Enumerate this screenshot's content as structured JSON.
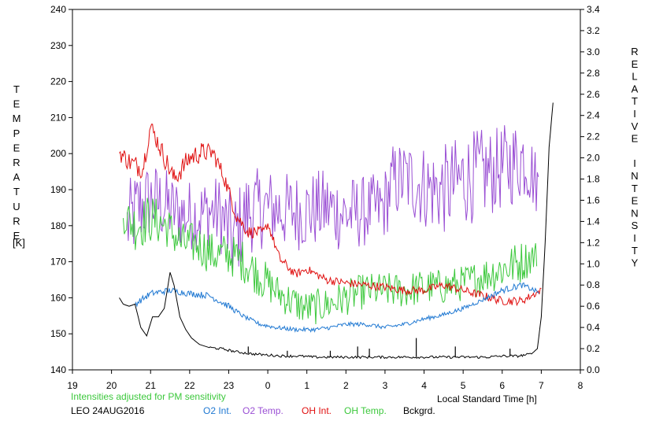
{
  "chart_data": {
    "type": "line",
    "left_axis": {
      "label_letters": [
        "T",
        "E",
        "M",
        "P",
        "E",
        "R",
        "A",
        "T",
        "U",
        "R",
        "E"
      ],
      "unit": "[K]",
      "ylim": [
        140,
        240
      ],
      "ticks": [
        140,
        150,
        160,
        170,
        180,
        190,
        200,
        210,
        220,
        230,
        240
      ],
      "tick_labels": [
        "140",
        "150",
        "160",
        "170",
        "180",
        "190",
        "200",
        "210",
        "220",
        "230",
        "240"
      ]
    },
    "right_axis": {
      "label_letters": [
        "R",
        "E",
        "L",
        "A",
        "T",
        "I",
        "V",
        "E",
        "",
        "I",
        "N",
        "T",
        "E",
        "N",
        "S",
        "I",
        "T",
        "Y"
      ],
      "ylim": [
        0,
        3.4
      ],
      "ticks": [
        0,
        0.2,
        0.4,
        0.6,
        0.8,
        1.0,
        1.2,
        1.4,
        1.6,
        1.8,
        2.0,
        2.2,
        2.4,
        2.6,
        2.8,
        3.0,
        3.2,
        3.4
      ],
      "tick_labels": [
        "0.0",
        "0.2",
        "0.4",
        "0.6",
        "0.8",
        "1.0",
        "1.2",
        "1.4",
        "1.6",
        "1.8",
        "2.0",
        "2.2",
        "2.4",
        "2.6",
        "2.8",
        "3.0",
        "3.2",
        "3.4"
      ]
    },
    "x_axis": {
      "label": "Local Standard Time [h]",
      "xlim": [
        19,
        32
      ],
      "ticks": [
        19,
        20,
        21,
        22,
        23,
        24,
        25,
        26,
        27,
        28,
        29,
        30,
        31,
        32
      ],
      "tick_labels": [
        "19",
        "20",
        "21",
        "22",
        "23",
        "0",
        "1",
        "2",
        "3",
        "4",
        "5",
        "6",
        "7",
        "8"
      ]
    },
    "note": "Intensities adjusted for PM sensitivity",
    "station": "LEO 24AUG2016",
    "legend": {
      "placement": "bottom",
      "entries": [
        {
          "key": "o2_int",
          "label": "O2 Int."
        },
        {
          "key": "o2_temp",
          "label": "O2 Temp."
        },
        {
          "key": "oh_int",
          "label": "OH Int."
        },
        {
          "key": "oh_temp",
          "label": "OH Temp."
        },
        {
          "key": "bckgrd",
          "label": "Bckgrd."
        }
      ]
    },
    "colors": {
      "o2_int": "#1f78d2",
      "o2_temp": "#9a4fd4",
      "oh_int": "#e01010",
      "oh_temp": "#3cc83c",
      "bckgrd": "#000000",
      "note": "#3cc83c"
    },
    "series": [
      {
        "key": "o2_temp",
        "axis": "left",
        "style": "noisy",
        "x": [
          20.4,
          20.7,
          21.0,
          21.3,
          21.6,
          21.9,
          22.2,
          22.5,
          22.8,
          23.1,
          23.5,
          24.0,
          24.5,
          25.0,
          25.5,
          26.0,
          26.5,
          26.95,
          27.2,
          27.5,
          27.8,
          28.2,
          28.6,
          29.0,
          29.4,
          29.8,
          30.2,
          30.6,
          30.95
        ],
        "y": [
          180,
          185,
          187,
          186,
          184,
          183,
          183,
          184,
          183,
          176,
          184,
          185,
          184,
          184,
          185,
          183,
          184,
          185,
          192,
          193,
          192,
          190,
          190,
          193,
          194,
          195,
          197,
          199,
          190
        ],
        "amplitude": [
          12,
          12,
          11,
          11,
          10,
          10,
          10,
          10,
          11,
          13,
          12,
          11,
          11,
          11,
          11,
          11,
          10,
          10,
          11,
          11,
          12,
          12,
          13,
          13,
          13,
          12,
          12,
          12,
          8
        ]
      },
      {
        "key": "oh_temp",
        "axis": "left",
        "style": "noisy",
        "x": [
          20.3,
          20.6,
          21.0,
          21.4,
          21.8,
          22.2,
          22.6,
          23.0,
          23.4,
          23.8,
          24.2,
          24.6,
          25.0,
          25.5,
          26.0,
          26.5,
          27.0,
          27.5,
          28.0,
          28.5,
          29.0,
          29.5,
          30.0,
          30.5,
          30.9
        ],
        "y": [
          183,
          180,
          182,
          180,
          175,
          175,
          172,
          172,
          170,
          166,
          162,
          159,
          157,
          158,
          160,
          162,
          162,
          162,
          163,
          163,
          164,
          166,
          168,
          170,
          172
        ],
        "amplitude": [
          5,
          7,
          7,
          6,
          6,
          6,
          6,
          6,
          6,
          6,
          5,
          5,
          5,
          5,
          5,
          5,
          5,
          5,
          5,
          5,
          5,
          5,
          6,
          6,
          4
        ]
      },
      {
        "key": "oh_int",
        "axis": "right",
        "style": "noisy",
        "x": [
          20.2,
          20.5,
          20.8,
          21.0,
          21.3,
          21.6,
          22.0,
          22.3,
          22.6,
          22.9,
          23.2,
          23.5,
          23.9,
          24.0,
          24.3,
          24.7,
          25.0,
          25.5,
          26.0,
          26.5,
          27.0,
          27.5,
          28.0,
          28.5,
          29.0,
          29.5,
          30.0,
          30.5,
          31.0
        ],
        "y": [
          2.05,
          1.95,
          1.9,
          2.3,
          2.05,
          1.8,
          2.0,
          2.05,
          2.05,
          1.8,
          1.45,
          1.3,
          1.3,
          1.38,
          1.05,
          0.9,
          0.95,
          0.85,
          0.82,
          0.8,
          0.78,
          0.75,
          0.75,
          0.8,
          0.75,
          0.7,
          0.65,
          0.65,
          0.75
        ],
        "amplitude": [
          0.08,
          0.1,
          0.1,
          0.08,
          0.1,
          0.1,
          0.1,
          0.1,
          0.08,
          0.08,
          0.07,
          0.06,
          0.05,
          0.04,
          0.05,
          0.04,
          0.04,
          0.04,
          0.04,
          0.04,
          0.04,
          0.04,
          0.04,
          0.04,
          0.04,
          0.04,
          0.04,
          0.04,
          0.03
        ]
      },
      {
        "key": "o2_int",
        "axis": "right",
        "style": "noisy",
        "x": [
          20.6,
          21.0,
          21.5,
          22.0,
          22.5,
          23.0,
          23.4,
          23.8,
          24.2,
          24.7,
          25.2,
          25.6,
          26.0,
          26.5,
          27.0,
          27.5,
          28.0,
          28.5,
          29.0,
          29.5,
          30.0,
          30.5,
          30.95
        ],
        "y": [
          0.62,
          0.72,
          0.75,
          0.72,
          0.7,
          0.6,
          0.5,
          0.43,
          0.4,
          0.38,
          0.38,
          0.4,
          0.43,
          0.43,
          0.4,
          0.43,
          0.48,
          0.52,
          0.58,
          0.66,
          0.75,
          0.8,
          0.73
        ],
        "amplitude": [
          0.03,
          0.03,
          0.03,
          0.03,
          0.03,
          0.03,
          0.02,
          0.02,
          0.02,
          0.02,
          0.02,
          0.02,
          0.02,
          0.02,
          0.02,
          0.02,
          0.02,
          0.02,
          0.02,
          0.02,
          0.03,
          0.03,
          0.02
        ]
      },
      {
        "key": "bckgrd",
        "axis": "right",
        "style": "smooth",
        "x": [
          20.2,
          20.3,
          20.45,
          20.6,
          20.75,
          20.9,
          21.05,
          21.2,
          21.35,
          21.5,
          21.6,
          21.75,
          21.9,
          22.05,
          22.25,
          22.5,
          22.8,
          23.2,
          23.6,
          24.0,
          24.4,
          24.8,
          25.2,
          25.6,
          26.0,
          26.4,
          26.8,
          27.2,
          27.6,
          28.0,
          28.4,
          28.8,
          29.2,
          29.6,
          30.0,
          30.4,
          30.75,
          30.9,
          31.0,
          31.1,
          31.2,
          31.3
        ],
        "y": [
          0.68,
          0.62,
          0.6,
          0.62,
          0.4,
          0.32,
          0.5,
          0.5,
          0.58,
          0.92,
          0.8,
          0.5,
          0.38,
          0.3,
          0.24,
          0.21,
          0.2,
          0.17,
          0.15,
          0.14,
          0.13,
          0.13,
          0.12,
          0.12,
          0.12,
          0.12,
          0.12,
          0.12,
          0.12,
          0.12,
          0.12,
          0.12,
          0.12,
          0.12,
          0.13,
          0.13,
          0.15,
          0.2,
          0.5,
          1.2,
          2.1,
          2.52
        ],
        "spikes": [
          {
            "x": 23.5,
            "y": 0.22
          },
          {
            "x": 24.5,
            "y": 0.18
          },
          {
            "x": 25.6,
            "y": 0.18
          },
          {
            "x": 26.3,
            "y": 0.22
          },
          {
            "x": 26.6,
            "y": 0.2
          },
          {
            "x": 27.8,
            "y": 0.3
          },
          {
            "x": 28.8,
            "y": 0.22
          },
          {
            "x": 30.2,
            "y": 0.2
          }
        ]
      }
    ]
  }
}
